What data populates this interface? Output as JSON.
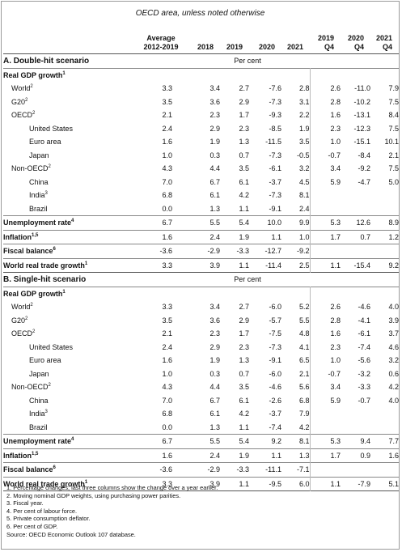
{
  "subtitle": "OECD area, unless noted otherwise",
  "columns": {
    "avg_l1": "Average",
    "avg_l2": "2012-2019",
    "y2018": "2018",
    "y2019": "2019",
    "y2020": "2020",
    "y2021": "2021",
    "q2019_l1": "2019",
    "q2019_l2": "Q4",
    "q2020_l1": "2020",
    "q2020_l2": "Q4",
    "q2021_l1": "2021",
    "q2021_l2": "Q4"
  },
  "sections": [
    {
      "title": "A. Double-hit scenario",
      "unit": "Per cent",
      "rows": [
        {
          "label": "Real GDP growth",
          "sup": "1",
          "style": "bold",
          "values": [
            "",
            "",
            "",
            "",
            "",
            "",
            "",
            ""
          ]
        },
        {
          "label": "World",
          "sup": "2",
          "indent": 1,
          "values": [
            "3.3",
            "3.4",
            "2.7",
            "-7.6",
            "2.8",
            "2.6",
            "-11.0",
            "7.9"
          ]
        },
        {
          "label": "G20",
          "sup": "2",
          "indent": 1,
          "values": [
            "3.5",
            "3.6",
            "2.9",
            "-7.3",
            "3.1",
            "2.8",
            "-10.2",
            "7.5"
          ]
        },
        {
          "label": "OECD",
          "sup": "2",
          "indent": 1,
          "values": [
            "2.1",
            "2.3",
            "1.7",
            "-9.3",
            "2.2",
            "1.6",
            "-13.1",
            "8.4"
          ]
        },
        {
          "label": "United States",
          "sup": "",
          "indent": 3,
          "values": [
            "2.4",
            "2.9",
            "2.3",
            "-8.5",
            "1.9",
            "2.3",
            "-12.3",
            "7.5"
          ]
        },
        {
          "label": "Euro area",
          "sup": "",
          "indent": 3,
          "values": [
            "1.6",
            "1.9",
            "1.3",
            "-11.5",
            "3.5",
            "1.0",
            "-15.1",
            "10.1"
          ]
        },
        {
          "label": "Japan",
          "sup": "",
          "indent": 3,
          "values": [
            "1.0",
            "0.3",
            "0.7",
            "-7.3",
            "-0.5",
            "-0.7",
            "-8.4",
            "2.1"
          ]
        },
        {
          "label": "Non-OECD",
          "sup": "2",
          "indent": 1,
          "values": [
            "4.3",
            "4.4",
            "3.5",
            "-6.1",
            "3.2",
            "3.4",
            "-9.2",
            "7.5"
          ]
        },
        {
          "label": "China",
          "sup": "",
          "indent": 3,
          "values": [
            "7.0",
            "6.7",
            "6.1",
            "-3.7",
            "4.5",
            "5.9",
            "-4.7",
            "5.0"
          ]
        },
        {
          "label": "India",
          "sup": "3",
          "indent": 3,
          "values": [
            "6.8",
            "6.1",
            "4.2",
            "-7.3",
            "8.1",
            "",
            "",
            ""
          ]
        },
        {
          "label": "Brazil",
          "sup": "",
          "indent": 3,
          "values": [
            "0.0",
            "1.3",
            "1.1",
            "-9.1",
            "2.4",
            "",
            "",
            ""
          ]
        },
        {
          "label": "Unemployment rate",
          "sup": "4",
          "style": "bold",
          "rule": true,
          "values": [
            "6.7",
            "5.5",
            "5.4",
            "10.0",
            "9.9",
            "5.3",
            "12.6",
            "8.9"
          ]
        },
        {
          "label": "Inflation",
          "sup": "1,5",
          "style": "bold",
          "rule": true,
          "values": [
            "1.6",
            "2.4",
            "1.9",
            "1.1",
            "1.0",
            "1.7",
            "0.7",
            "1.2"
          ]
        },
        {
          "label": "Fiscal balance",
          "sup": "6",
          "style": "bold",
          "rule": true,
          "values": [
            "-3.6",
            "-2.9",
            "-3.3",
            "-12.7",
            "-9.2",
            "",
            "",
            ""
          ]
        },
        {
          "label": "World real trade growth",
          "sup": "1",
          "style": "bold",
          "rule": true,
          "values": [
            "3.3",
            "3.9",
            "1.1",
            "-11.4",
            "2.5",
            "1.1",
            "-15.4",
            "9.2"
          ]
        }
      ]
    },
    {
      "title": "B. Single-hit scenario",
      "unit": "Per cent",
      "rows": [
        {
          "label": "Real GDP growth",
          "sup": "1",
          "style": "bold",
          "values": [
            "",
            "",
            "",
            "",
            "",
            "",
            "",
            ""
          ]
        },
        {
          "label": "World",
          "sup": "2",
          "indent": 1,
          "values": [
            "3.3",
            "3.4",
            "2.7",
            "-6.0",
            "5.2",
            "2.6",
            "-4.6",
            "4.0"
          ]
        },
        {
          "label": "G20",
          "sup": "2",
          "indent": 1,
          "values": [
            "3.5",
            "3.6",
            "2.9",
            "-5.7",
            "5.5",
            "2.8",
            "-4.1",
            "3.9"
          ]
        },
        {
          "label": "OECD",
          "sup": "2",
          "indent": 1,
          "values": [
            "2.1",
            "2.3",
            "1.7",
            "-7.5",
            "4.8",
            "1.6",
            "-6.1",
            "3.7"
          ]
        },
        {
          "label": "United States",
          "sup": "",
          "indent": 3,
          "values": [
            "2.4",
            "2.9",
            "2.3",
            "-7.3",
            "4.1",
            "2.3",
            "-7.4",
            "4.6"
          ]
        },
        {
          "label": "Euro area",
          "sup": "",
          "indent": 3,
          "values": [
            "1.6",
            "1.9",
            "1.3",
            "-9.1",
            "6.5",
            "1.0",
            "-5.6",
            "3.2"
          ]
        },
        {
          "label": "Japan",
          "sup": "",
          "indent": 3,
          "values": [
            "1.0",
            "0.3",
            "0.7",
            "-6.0",
            "2.1",
            "-0.7",
            "-3.2",
            "0.6"
          ]
        },
        {
          "label": "Non-OECD",
          "sup": "2",
          "indent": 1,
          "values": [
            "4.3",
            "4.4",
            "3.5",
            "-4.6",
            "5.6",
            "3.4",
            "-3.3",
            "4.2"
          ]
        },
        {
          "label": "China",
          "sup": "",
          "indent": 3,
          "values": [
            "7.0",
            "6.7",
            "6.1",
            "-2.6",
            "6.8",
            "5.9",
            "-0.7",
            "4.0"
          ]
        },
        {
          "label": "India",
          "sup": "3",
          "indent": 3,
          "values": [
            "6.8",
            "6.1",
            "4.2",
            "-3.7",
            "7.9",
            "",
            "",
            ""
          ]
        },
        {
          "label": "Brazil",
          "sup": "",
          "indent": 3,
          "values": [
            "0.0",
            "1.3",
            "1.1",
            "-7.4",
            "4.2",
            "",
            "",
            ""
          ]
        },
        {
          "label": "Unemployment rate",
          "sup": "4",
          "style": "bold",
          "rule": true,
          "values": [
            "6.7",
            "5.5",
            "5.4",
            "9.2",
            "8.1",
            "5.3",
            "9.4",
            "7.7"
          ]
        },
        {
          "label": "Inflation",
          "sup": "1,5",
          "style": "bold",
          "rule": true,
          "values": [
            "1.6",
            "2.4",
            "1.9",
            "1.1",
            "1.3",
            "1.7",
            "0.9",
            "1.6"
          ]
        },
        {
          "label": "Fiscal balance",
          "sup": "6",
          "style": "bold",
          "rule": true,
          "values": [
            "-3.6",
            "-2.9",
            "-3.3",
            "-11.1",
            "-7.1",
            "",
            "",
            ""
          ]
        },
        {
          "label": "World real trade growth",
          "sup": "1",
          "style": "bold",
          "rule": true,
          "values": [
            "3.3",
            "3.9",
            "1.1",
            "-9.5",
            "6.0",
            "1.1",
            "-7.9",
            "5.1"
          ]
        }
      ]
    }
  ],
  "notes": [
    "1. Percentage changes; last three columns show the change over a year earlier.",
    "2. Moving nominal GDP weights, using purchasing power parities.",
    "3. Fiscal year.",
    "4. Per cent of labour force.",
    "5. Private consumption deflator.",
    "6. Per cent of GDP.",
    "Source: OECD Economic Outlook 107 database."
  ]
}
